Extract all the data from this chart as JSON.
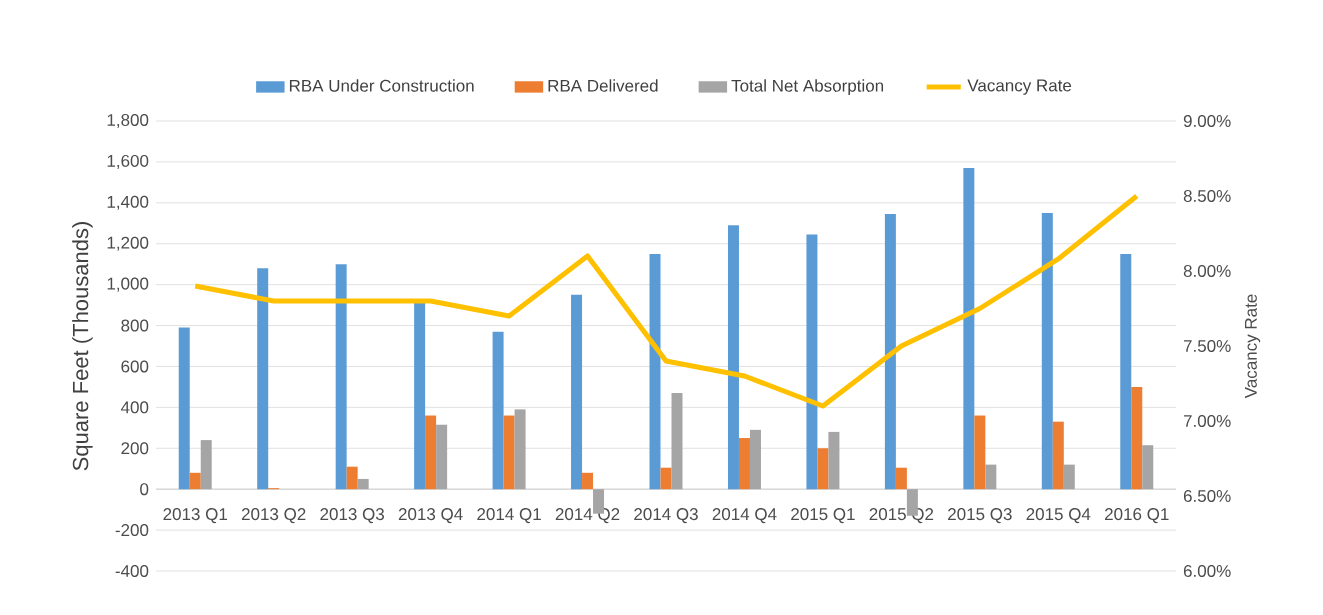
{
  "chart_data": {
    "type": "bar",
    "categories": [
      "2013 Q1",
      "2013 Q2",
      "2013 Q3",
      "2013 Q4",
      "2014 Q1",
      "2014 Q2",
      "2014 Q3",
      "2014 Q4",
      "2015 Q1",
      "2015 Q2",
      "2015 Q3",
      "2015 Q4",
      "2016 Q1"
    ],
    "series": [
      {
        "name": "RBA Under Construction",
        "color": "#5b9bd5",
        "values": [
          790,
          1080,
          1100,
          910,
          770,
          950,
          1150,
          1290,
          1245,
          1345,
          1570,
          1350,
          1150
        ]
      },
      {
        "name": "RBA Delivered",
        "color": "#ed7d31",
        "values": [
          80,
          5,
          110,
          360,
          360,
          80,
          105,
          250,
          200,
          105,
          360,
          330,
          500
        ]
      },
      {
        "name": "Total Net Absorption",
        "color": "#a5a5a5",
        "values": [
          240,
          0,
          50,
          315,
          390,
          -120,
          470,
          290,
          280,
          -130,
          120,
          120,
          215
        ]
      },
      {
        "name": "Vacancy Rate",
        "type": "line",
        "axis": "y2",
        "color": "#ffc000",
        "values": [
          7.9,
          7.8,
          7.8,
          7.8,
          7.7,
          8.1,
          7.4,
          7.3,
          7.1,
          7.5,
          7.75,
          8.08,
          8.5
        ]
      }
    ],
    "ylabel": "Square Feet (Thousands)",
    "y2label": "Vacancy Rate",
    "ylim": [
      -400,
      1800
    ],
    "yticks": [
      {
        "value": -400,
        "label": "-400"
      },
      {
        "value": -200,
        "label": "-200"
      },
      0,
      200,
      400,
      600,
      800,
      {
        "value": 1000,
        "label": "1,000"
      },
      {
        "value": 1200,
        "label": "1,200"
      },
      {
        "value": 1400,
        "label": "1,400"
      },
      {
        "value": 1600,
        "label": "1,600"
      },
      {
        "value": 1800,
        "label": "1,800"
      }
    ],
    "y2lim": [
      6,
      9
    ],
    "y2ticks": [
      {
        "value": 6,
        "label": "6.00%"
      },
      {
        "value": 6.5,
        "label": "6.50%"
      },
      {
        "value": 7,
        "label": "7.00%"
      },
      {
        "value": 7.5,
        "label": "7.50%"
      },
      {
        "value": 8,
        "label": "8.00%"
      },
      {
        "value": 8.5,
        "label": "8.50%"
      },
      {
        "value": 9,
        "label": "9.00%"
      }
    ],
    "grid": "y",
    "legend": "top"
  }
}
